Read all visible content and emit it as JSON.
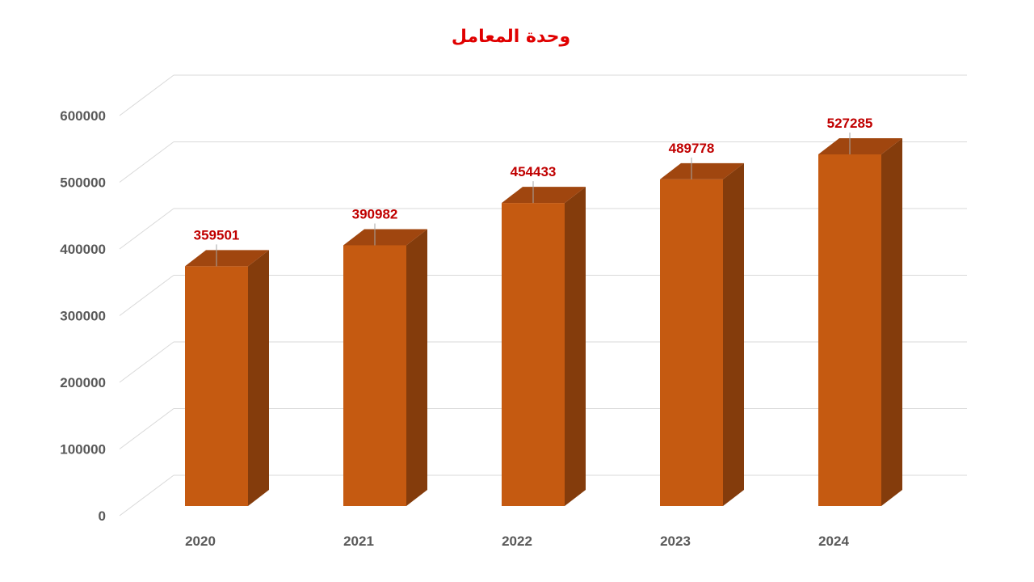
{
  "chart_data": {
    "type": "bar",
    "title": "وحدة المعامل",
    "categories": [
      "2020",
      "2021",
      "2022",
      "2023",
      "2024"
    ],
    "values": [
      359501,
      390982,
      454433,
      489778,
      527285
    ],
    "ylim": [
      0,
      600000
    ],
    "yticks": [
      0,
      100000,
      200000,
      300000,
      400000,
      500000,
      600000
    ],
    "grid": true,
    "legend": "none",
    "data_labels": true,
    "style": "3d-column"
  },
  "colors": {
    "title": "#e00000",
    "bar_front": "#c55a11",
    "bar_side": "#843c0c",
    "bar_top": "#a0460f",
    "data_label": "#c00000",
    "axis_label": "#595959",
    "grid": "#d9d9d9"
  }
}
